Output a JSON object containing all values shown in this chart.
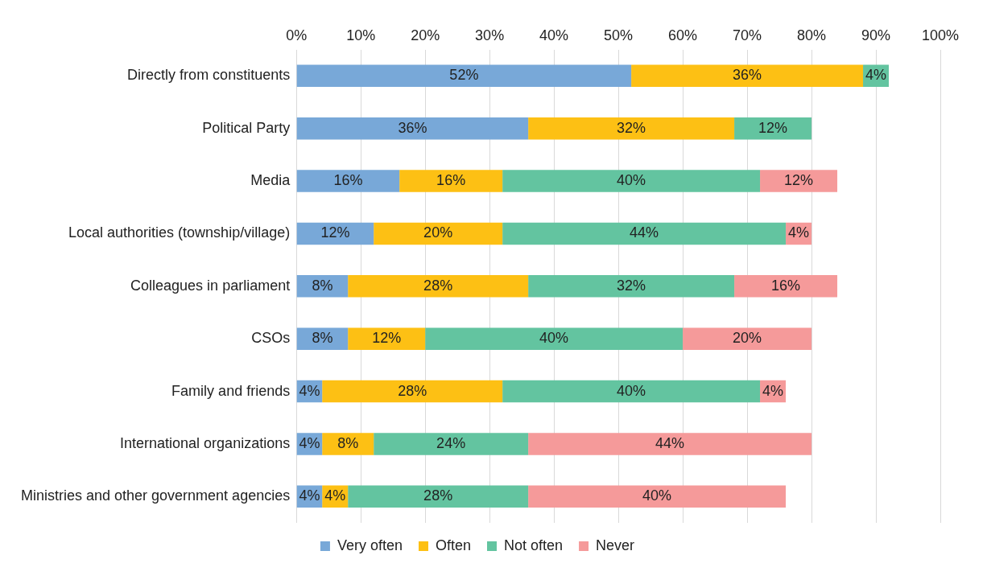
{
  "chart_data": {
    "type": "bar",
    "orientation": "horizontal",
    "stacked": true,
    "categories": [
      "Directly from constituents",
      "Political Party",
      "Media",
      "Local authorities (township/village)",
      "Colleagues in parliament",
      "CSOs",
      "Family and friends",
      "International organizations",
      "Ministries and other government agencies"
    ],
    "series": [
      {
        "name": "Very often",
        "color": "#78a8d8",
        "values": [
          52,
          36,
          16,
          12,
          8,
          8,
          4,
          4,
          4
        ],
        "value_labels": [
          "52%",
          "36%",
          "16%",
          "12%",
          "8%",
          "8%",
          "4%",
          "4%",
          "4%"
        ]
      },
      {
        "name": "Often",
        "color": "#fdc014",
        "values": [
          36,
          32,
          16,
          20,
          28,
          12,
          28,
          8,
          4
        ],
        "value_labels": [
          "36%",
          "32%",
          "16%",
          "20%",
          "28%",
          "12%",
          "28%",
          "8%",
          "4%"
        ]
      },
      {
        "name": "Not often",
        "color": "#63c4a0",
        "values": [
          4,
          12,
          40,
          44,
          32,
          40,
          40,
          24,
          28
        ],
        "value_labels": [
          "4%",
          "12%",
          "40%",
          "44%",
          "32%",
          "40%",
          "40%",
          "24%",
          "28%"
        ]
      },
      {
        "name": "Never",
        "color": "#f59a9a",
        "values": [
          null,
          null,
          12,
          4,
          16,
          20,
          4,
          44,
          40
        ],
        "value_labels": [
          null,
          null,
          "12%",
          "4%",
          "16%",
          "20%",
          "4%",
          "44%",
          "40%"
        ]
      }
    ],
    "xlim": [
      0,
      100
    ],
    "xticks": [
      {
        "value": 0,
        "label": "0%"
      },
      {
        "value": 10,
        "label": "10%"
      },
      {
        "value": 20,
        "label": "20%"
      },
      {
        "value": 30,
        "label": "30%"
      },
      {
        "value": 40,
        "label": "40%"
      },
      {
        "value": 50,
        "label": "50%"
      },
      {
        "value": 60,
        "label": "60%"
      },
      {
        "value": 70,
        "label": "70%"
      },
      {
        "value": 80,
        "label": "80%"
      },
      {
        "value": 90,
        "label": "90%"
      },
      {
        "value": 100,
        "label": "100%"
      }
    ],
    "grid": "x",
    "legend": "bottom"
  }
}
